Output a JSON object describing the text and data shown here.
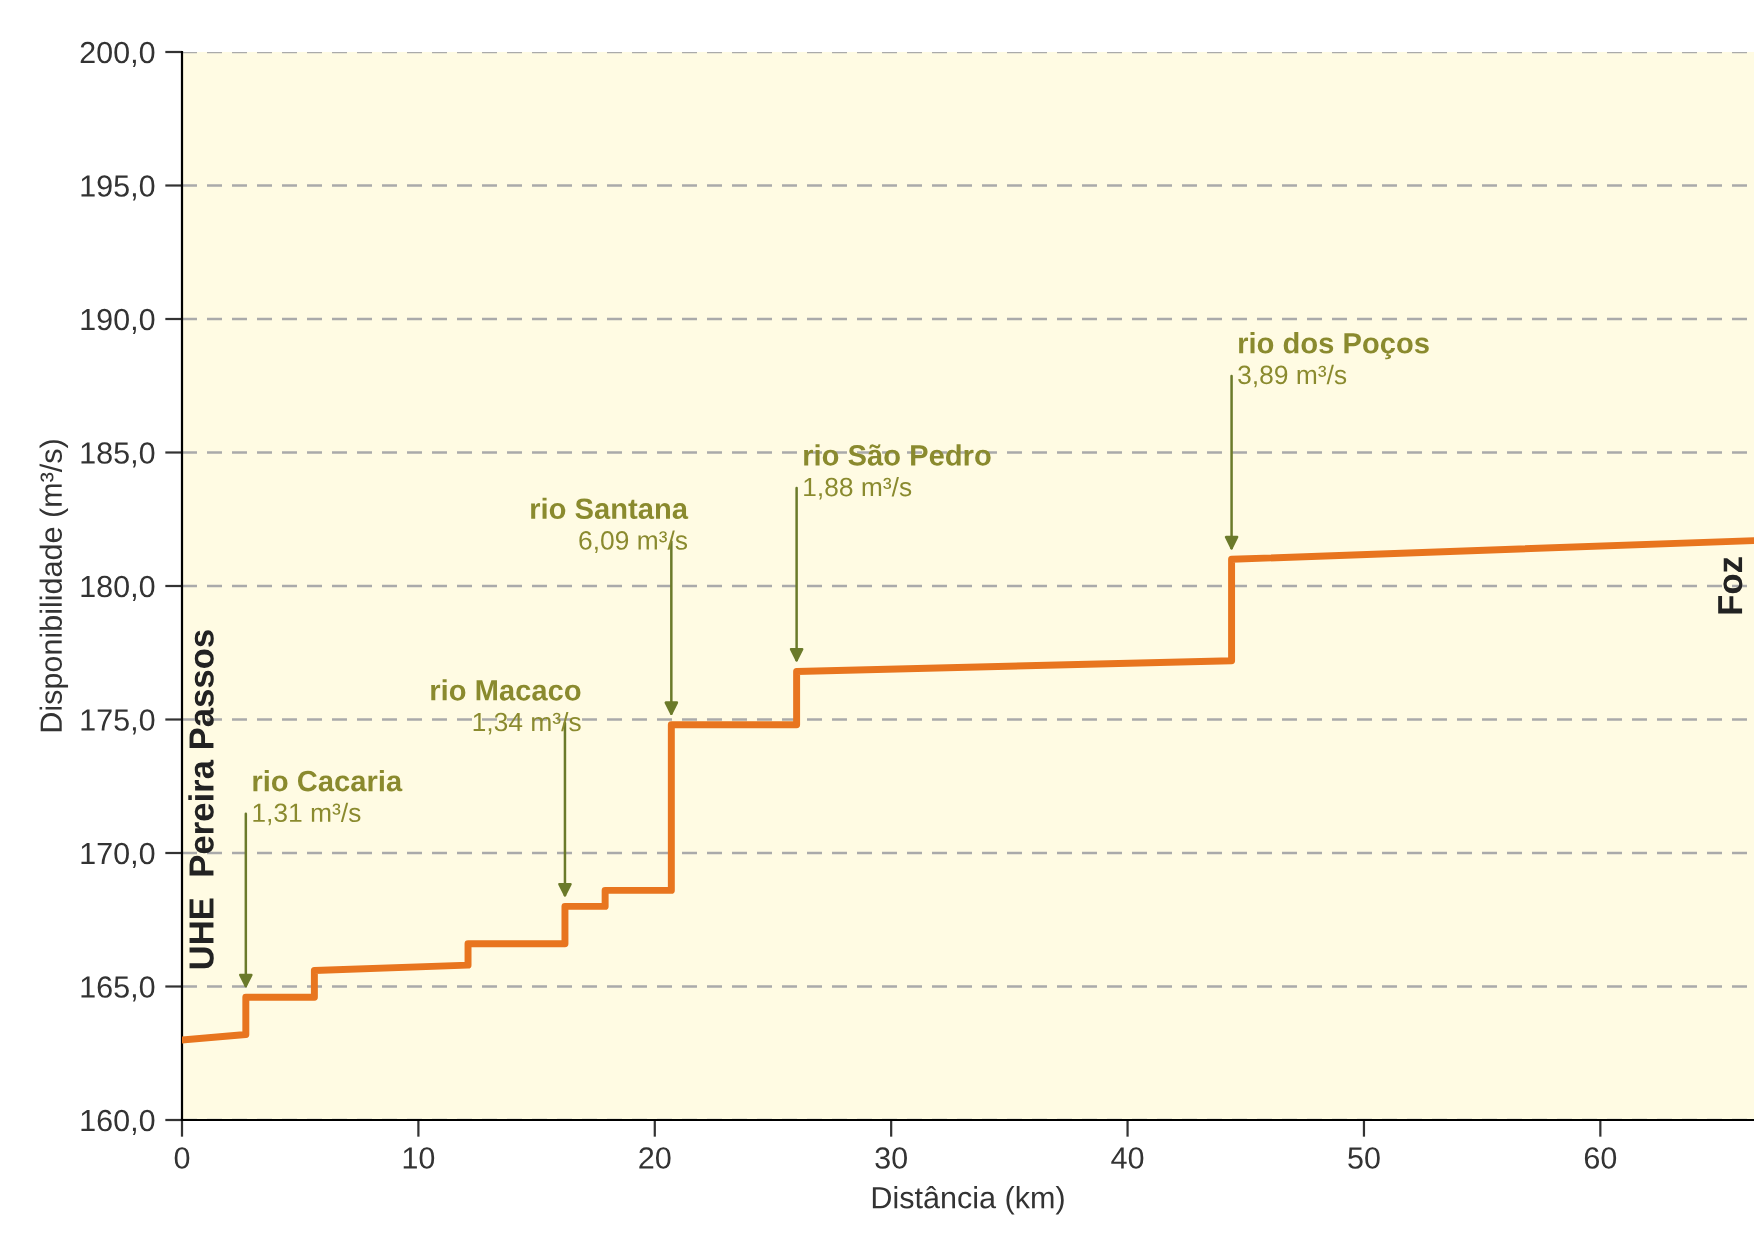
{
  "chart_data": {
    "type": "line",
    "xlabel": "Distância (km)",
    "ylabel": "Disponibilidade (m³/s)",
    "series": [
      {
        "color": "#e8751f",
        "x": [
          0,
          2.7,
          2.7,
          5.6,
          5.6,
          12.1,
          12.1,
          16.2,
          16.2,
          17.9,
          17.9,
          20.7,
          20.7,
          26.0,
          26.0,
          44.4,
          44.4,
          66.5
        ],
        "values": [
          163.0,
          163.2,
          164.6,
          164.6,
          165.6,
          165.8,
          166.6,
          166.6,
          168.0,
          168.0,
          168.6,
          168.6,
          174.8,
          174.8,
          176.8,
          177.2,
          181.0,
          181.7
        ]
      }
    ],
    "xlim": [
      0,
      66.5
    ],
    "xticks": [
      0,
      10,
      20,
      30,
      40,
      50,
      60
    ],
    "ylim": [
      160,
      200
    ],
    "yticks": [
      {
        "value": 160,
        "label": "160,0"
      },
      {
        "value": 165,
        "label": "165,0"
      },
      {
        "value": 170,
        "label": "170,0"
      },
      {
        "value": 175,
        "label": "175,0"
      },
      {
        "value": 180,
        "label": "180,0"
      },
      {
        "value": 185,
        "label": "185,0"
      },
      {
        "value": 190,
        "label": "190,0"
      },
      {
        "value": 195,
        "label": "195,0"
      },
      {
        "value": 200,
        "label": "200,0"
      }
    ],
    "grid": "y",
    "marker": "none",
    "line_style": "solid",
    "annotations": [
      {
        "text": "rio Cacaria\n1,31 m³/s",
        "x": 2.7,
        "y": 164.6
      },
      {
        "text": "rio Macaco\n1,34 m³/s",
        "x": 16.2,
        "y": 168.0
      },
      {
        "text": "rio Santana\n6,09 m³/s",
        "x": 20.7,
        "y": 174.8
      },
      {
        "text": "rio São Pedro\n1,88 m³/s",
        "x": 26.0,
        "y": 176.8
      },
      {
        "text": "rio dos Poços\n3,89 m³/s",
        "x": 44.4,
        "y": 181.0
      },
      "UHE  Pereira Passos",
      "Foz"
    ]
  }
}
